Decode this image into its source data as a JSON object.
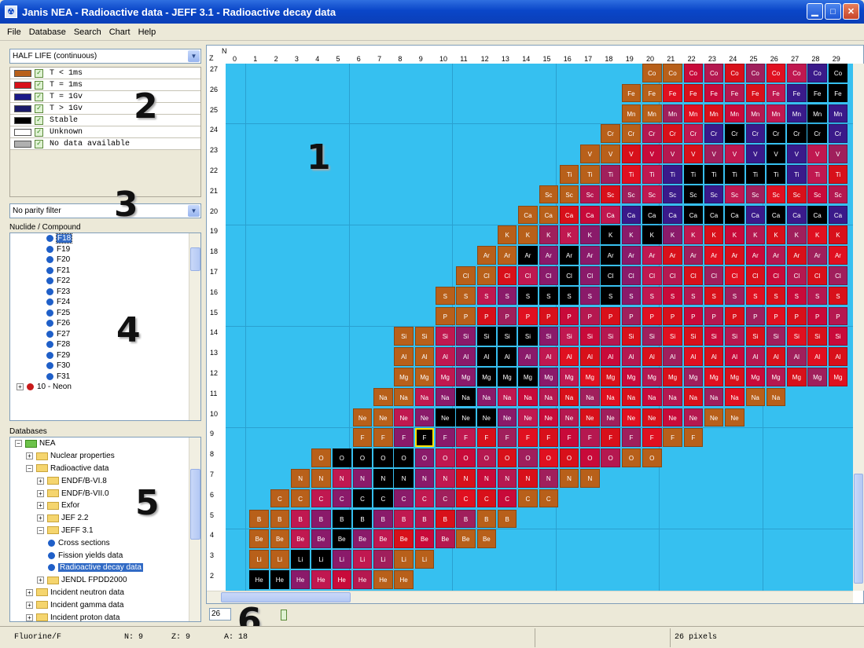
{
  "window": {
    "title": "Janis NEA - Radioactive data - JEFF 3.1 - Radioactive decay data"
  },
  "menu": [
    "File",
    "Database",
    "Search",
    "Chart",
    "Help"
  ],
  "mode_select": {
    "value": "HALF LIFE (continuous)"
  },
  "legend": [
    {
      "label": "T < 1ms",
      "color": "#b8601a",
      "checked": true
    },
    {
      "label": "T = 1ms",
      "color": "#d8101a",
      "checked": true
    },
    {
      "label": "T = 1Gv",
      "color": "#1a1a8a",
      "checked": true
    },
    {
      "label": "T > 1Gv",
      "color": "#1a1a6a",
      "checked": true
    },
    {
      "label": "Stable",
      "color": "#000000",
      "checked": true
    },
    {
      "label": "Unknown",
      "color": "#ffffff",
      "checked": true
    },
    {
      "label": "No data available",
      "color": "#b0b0b0",
      "checked": true
    }
  ],
  "parity_select": {
    "value": "No parity filter"
  },
  "nuclide_panel": {
    "title": "Nuclide / Compound",
    "items": [
      "F18",
      "F19",
      "F20",
      "F21",
      "F22",
      "F23",
      "F24",
      "F25",
      "F26",
      "F27",
      "F28",
      "F29",
      "F30",
      "F31"
    ],
    "selected": "F18",
    "next_group": "10 - Neon"
  },
  "databases_panel": {
    "title": "Databases",
    "items": [
      {
        "label": "NEA",
        "level": 0,
        "type": "root"
      },
      {
        "label": "Nuclear properties",
        "level": 1,
        "type": "folder"
      },
      {
        "label": "Radioactive data",
        "level": 1,
        "type": "folder"
      },
      {
        "label": "ENDF/B-VI.8",
        "level": 2,
        "type": "folder"
      },
      {
        "label": "ENDF/B-VII.0",
        "level": 2,
        "type": "folder"
      },
      {
        "label": "Exfor",
        "level": 2,
        "type": "folder"
      },
      {
        "label": "JEF 2.2",
        "level": 2,
        "type": "folder"
      },
      {
        "label": "JEFF 3.1",
        "level": 2,
        "type": "folder"
      },
      {
        "label": "Cross sections",
        "level": 3,
        "type": "leaf"
      },
      {
        "label": "Fission yields data",
        "level": 3,
        "type": "leaf"
      },
      {
        "label": "Radioactive decay data",
        "level": 3,
        "type": "leaf",
        "selected": true
      },
      {
        "label": "JENDL FPDD2000",
        "level": 2,
        "type": "folder"
      },
      {
        "label": "Incident neutron data",
        "level": 1,
        "type": "folder"
      },
      {
        "label": "Incident gamma data",
        "level": 1,
        "type": "folder"
      },
      {
        "label": "Incident proton data",
        "level": 1,
        "type": "folder"
      }
    ]
  },
  "annotations": [
    "1",
    "2",
    "3",
    "4",
    "5",
    "6"
  ],
  "chart": {
    "n_axis_label": "N",
    "z_axis_label": "Z",
    "n_labels": [
      "0",
      "1",
      "2",
      "3",
      "4",
      "5",
      "6",
      "7",
      "8",
      "9",
      "10",
      "11",
      "12",
      "13",
      "14",
      "15",
      "16",
      "17",
      "18",
      "19",
      "20",
      "21",
      "22",
      "23",
      "24",
      "25",
      "26",
      "27",
      "28",
      "29"
    ],
    "z_labels": [
      "27",
      "26",
      "25",
      "24",
      "23",
      "22",
      "21",
      "20",
      "19",
      "18",
      "17",
      "16",
      "15",
      "14",
      "13",
      "12",
      "11",
      "10",
      "9",
      "8",
      "7",
      "6",
      "5",
      "4",
      "3",
      "2"
    ],
    "elements": {
      "27": "Co",
      "26": "Fe",
      "25": "Mn",
      "24": "Cr",
      "23": "V",
      "22": "Ti",
      "21": "Sc",
      "20": "Ca",
      "19": "K",
      "18": "Ar",
      "17": "Cl",
      "16": "S",
      "15": "P",
      "14": "Si",
      "13": "Al",
      "12": "Mg",
      "11": "Na",
      "10": "Ne",
      "9": "F",
      "8": "O",
      "7": "N",
      "6": "C",
      "5": "B",
      "4": "Be",
      "3": "Li",
      "2": "He"
    },
    "nmin": {
      "27": 20,
      "26": 19,
      "25": 19,
      "24": 18,
      "23": 17,
      "22": 16,
      "21": 15,
      "20": 14,
      "19": 13,
      "18": 12,
      "17": 11,
      "16": 10,
      "15": 10,
      "14": 8,
      "13": 8,
      "12": 8,
      "11": 7,
      "10": 6,
      "9": 6,
      "8": 4,
      "7": 3,
      "6": 2,
      "5": 1,
      "4": 1,
      "3": 1,
      "2": 1
    },
    "nmax": {
      "27": 29,
      "26": 29,
      "25": 29,
      "24": 29,
      "23": 29,
      "22": 29,
      "21": 29,
      "20": 29,
      "19": 29,
      "18": 29,
      "17": 29,
      "16": 29,
      "15": 29,
      "14": 29,
      "13": 29,
      "12": 29,
      "11": 26,
      "10": 24,
      "9": 22,
      "8": 20,
      "7": 17,
      "6": 15,
      "5": 13,
      "4": 12,
      "3": 9,
      "2": 8
    },
    "stable": [
      [
        8,
        5
      ],
      [
        8,
        6
      ],
      [
        8,
        7
      ],
      [
        8,
        8
      ],
      [
        9,
        9
      ],
      [
        10,
        10
      ],
      [
        10,
        11
      ],
      [
        10,
        12
      ],
      [
        11,
        11
      ],
      [
        12,
        12
      ],
      [
        12,
        13
      ],
      [
        12,
        14
      ],
      [
        13,
        12
      ],
      [
        13,
        13
      ],
      [
        14,
        12
      ],
      [
        14,
        13
      ],
      [
        14,
        14
      ],
      [
        16,
        14
      ],
      [
        16,
        15
      ],
      [
        16,
        16
      ],
      [
        16,
        18
      ],
      [
        17,
        16
      ],
      [
        17,
        18
      ],
      [
        18,
        14
      ],
      [
        18,
        16
      ],
      [
        18,
        18
      ],
      [
        19,
        18
      ],
      [
        19,
        20
      ],
      [
        20,
        20
      ],
      [
        20,
        22
      ],
      [
        20,
        23
      ],
      [
        20,
        24
      ],
      [
        20,
        26
      ],
      [
        20,
        28
      ],
      [
        21,
        22
      ],
      [
        22,
        22
      ],
      [
        22,
        23
      ],
      [
        22,
        24
      ],
      [
        22,
        25
      ],
      [
        22,
        26
      ],
      [
        23,
        26
      ],
      [
        24,
        24
      ],
      [
        24,
        26
      ],
      [
        24,
        27
      ],
      [
        24,
        28
      ],
      [
        25,
        28
      ],
      [
        26,
        28
      ],
      [
        26,
        29
      ],
      [
        27,
        29
      ],
      [
        3,
        3
      ],
      [
        3,
        4
      ],
      [
        4,
        5
      ],
      [
        5,
        5
      ],
      [
        5,
        6
      ],
      [
        6,
        6
      ],
      [
        6,
        7
      ],
      [
        7,
        7
      ],
      [
        7,
        8
      ],
      [
        2,
        1
      ],
      [
        2,
        2
      ]
    ],
    "highlight": {
      "z": 9,
      "n": 9
    },
    "zoom_value": "26"
  },
  "status": {
    "nuclide": "Fluorine/F",
    "n": "N: 9",
    "z": "Z: 9",
    "a": "A: 18",
    "pixels": "26 pixels"
  }
}
